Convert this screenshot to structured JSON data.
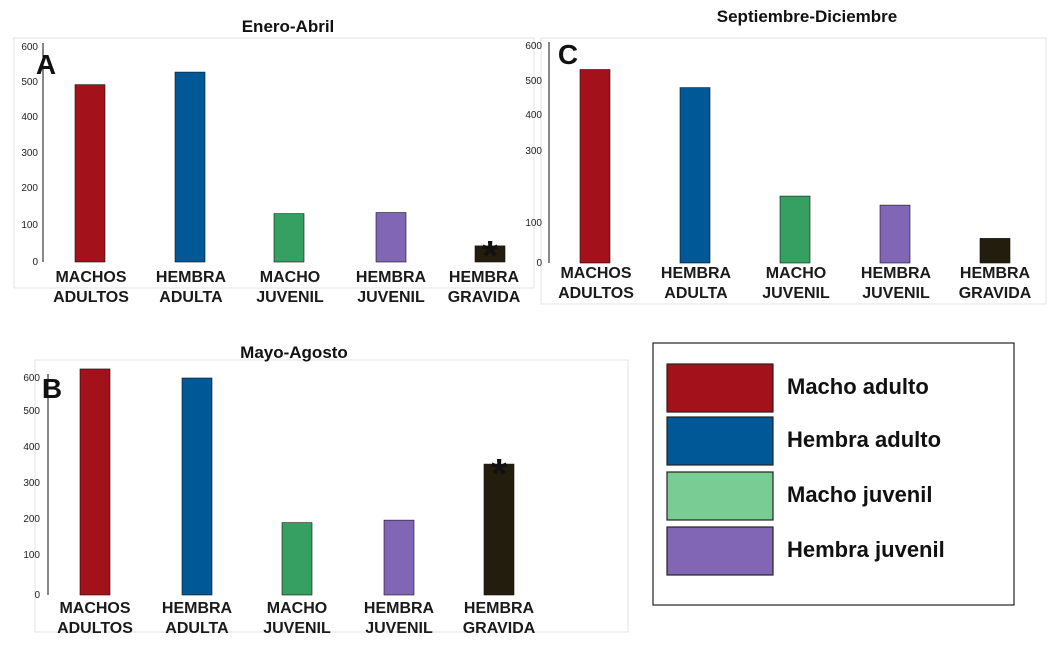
{
  "colors": {
    "macho_adulto": "#a3111b",
    "hembra_adulta": "#005897",
    "macho_juvenil": "#35a062",
    "hembra_juvenil": "#8166b6",
    "hembra_gravida": "#221d0c",
    "legend_macho_juvenil": "#79cd94"
  },
  "chart_data": [
    {
      "id": "A",
      "type": "bar",
      "panel_letter": "A",
      "title": "Enero-Abril",
      "categories": [
        [
          "MACHOS",
          "ADULTOS"
        ],
        [
          "HEMBRA",
          "ADULTA"
        ],
        [
          "MACHO",
          "JUVENIL"
        ],
        [
          "HEMBRA",
          "JUVENIL"
        ],
        [
          "HEMBRA",
          "GRAVIDA"
        ]
      ],
      "values": [
        495,
        530,
        135,
        138,
        45
      ],
      "annotations": [
        {
          "category_index": 4,
          "text": "*"
        }
      ],
      "yticks": [
        "0",
        "100",
        "200",
        "300",
        "400",
        "500",
        "600"
      ],
      "ylim": [
        0,
        600
      ]
    },
    {
      "id": "B",
      "type": "bar",
      "panel_letter": "B",
      "title": "Mayo-Agosto",
      "categories": [
        [
          "MACHOS",
          "ADULTOS"
        ],
        [
          "HEMBRA",
          "ADULTA"
        ],
        [
          "MACHO",
          "JUVENIL"
        ],
        [
          "HEMBRA",
          "JUVENIL"
        ],
        [
          "HEMBRA",
          "GRAVIDA"
        ]
      ],
      "values": [
        625,
        600,
        200,
        207,
        362
      ],
      "annotations": [
        {
          "category_index": 4,
          "text": "*"
        }
      ],
      "yticks": [
        "0",
        "100",
        "200",
        "300",
        "400",
        "500",
        "600"
      ],
      "ylim": [
        0,
        600
      ]
    },
    {
      "id": "C",
      "type": "bar",
      "panel_letter": "C",
      "title": "Septiembre-Diciembre",
      "categories": [
        [
          "MACHOS",
          "ADULTOS"
        ],
        [
          "HEMBRA",
          "ADULTA"
        ],
        [
          "MACHO",
          "JUVENIL"
        ],
        [
          "HEMBRA",
          "JUVENIL"
        ],
        [
          "HEMBRA",
          "GRAVIDA"
        ]
      ],
      "values": [
        535,
        485,
        185,
        160,
        68
      ],
      "annotations": [],
      "yticks": [
        "0",
        "100",
        "300",
        "400",
        "500",
        "600"
      ],
      "ylim": [
        0,
        600
      ]
    }
  ],
  "legend": [
    {
      "label": "Macho adulto",
      "color": "#a3111b"
    },
    {
      "label": "Hembra adulto",
      "color": "#005897"
    },
    {
      "label": "Macho juvenil",
      "color": "#79cd94"
    },
    {
      "label": "Hembra juvenil",
      "color": "#8166b6"
    }
  ]
}
